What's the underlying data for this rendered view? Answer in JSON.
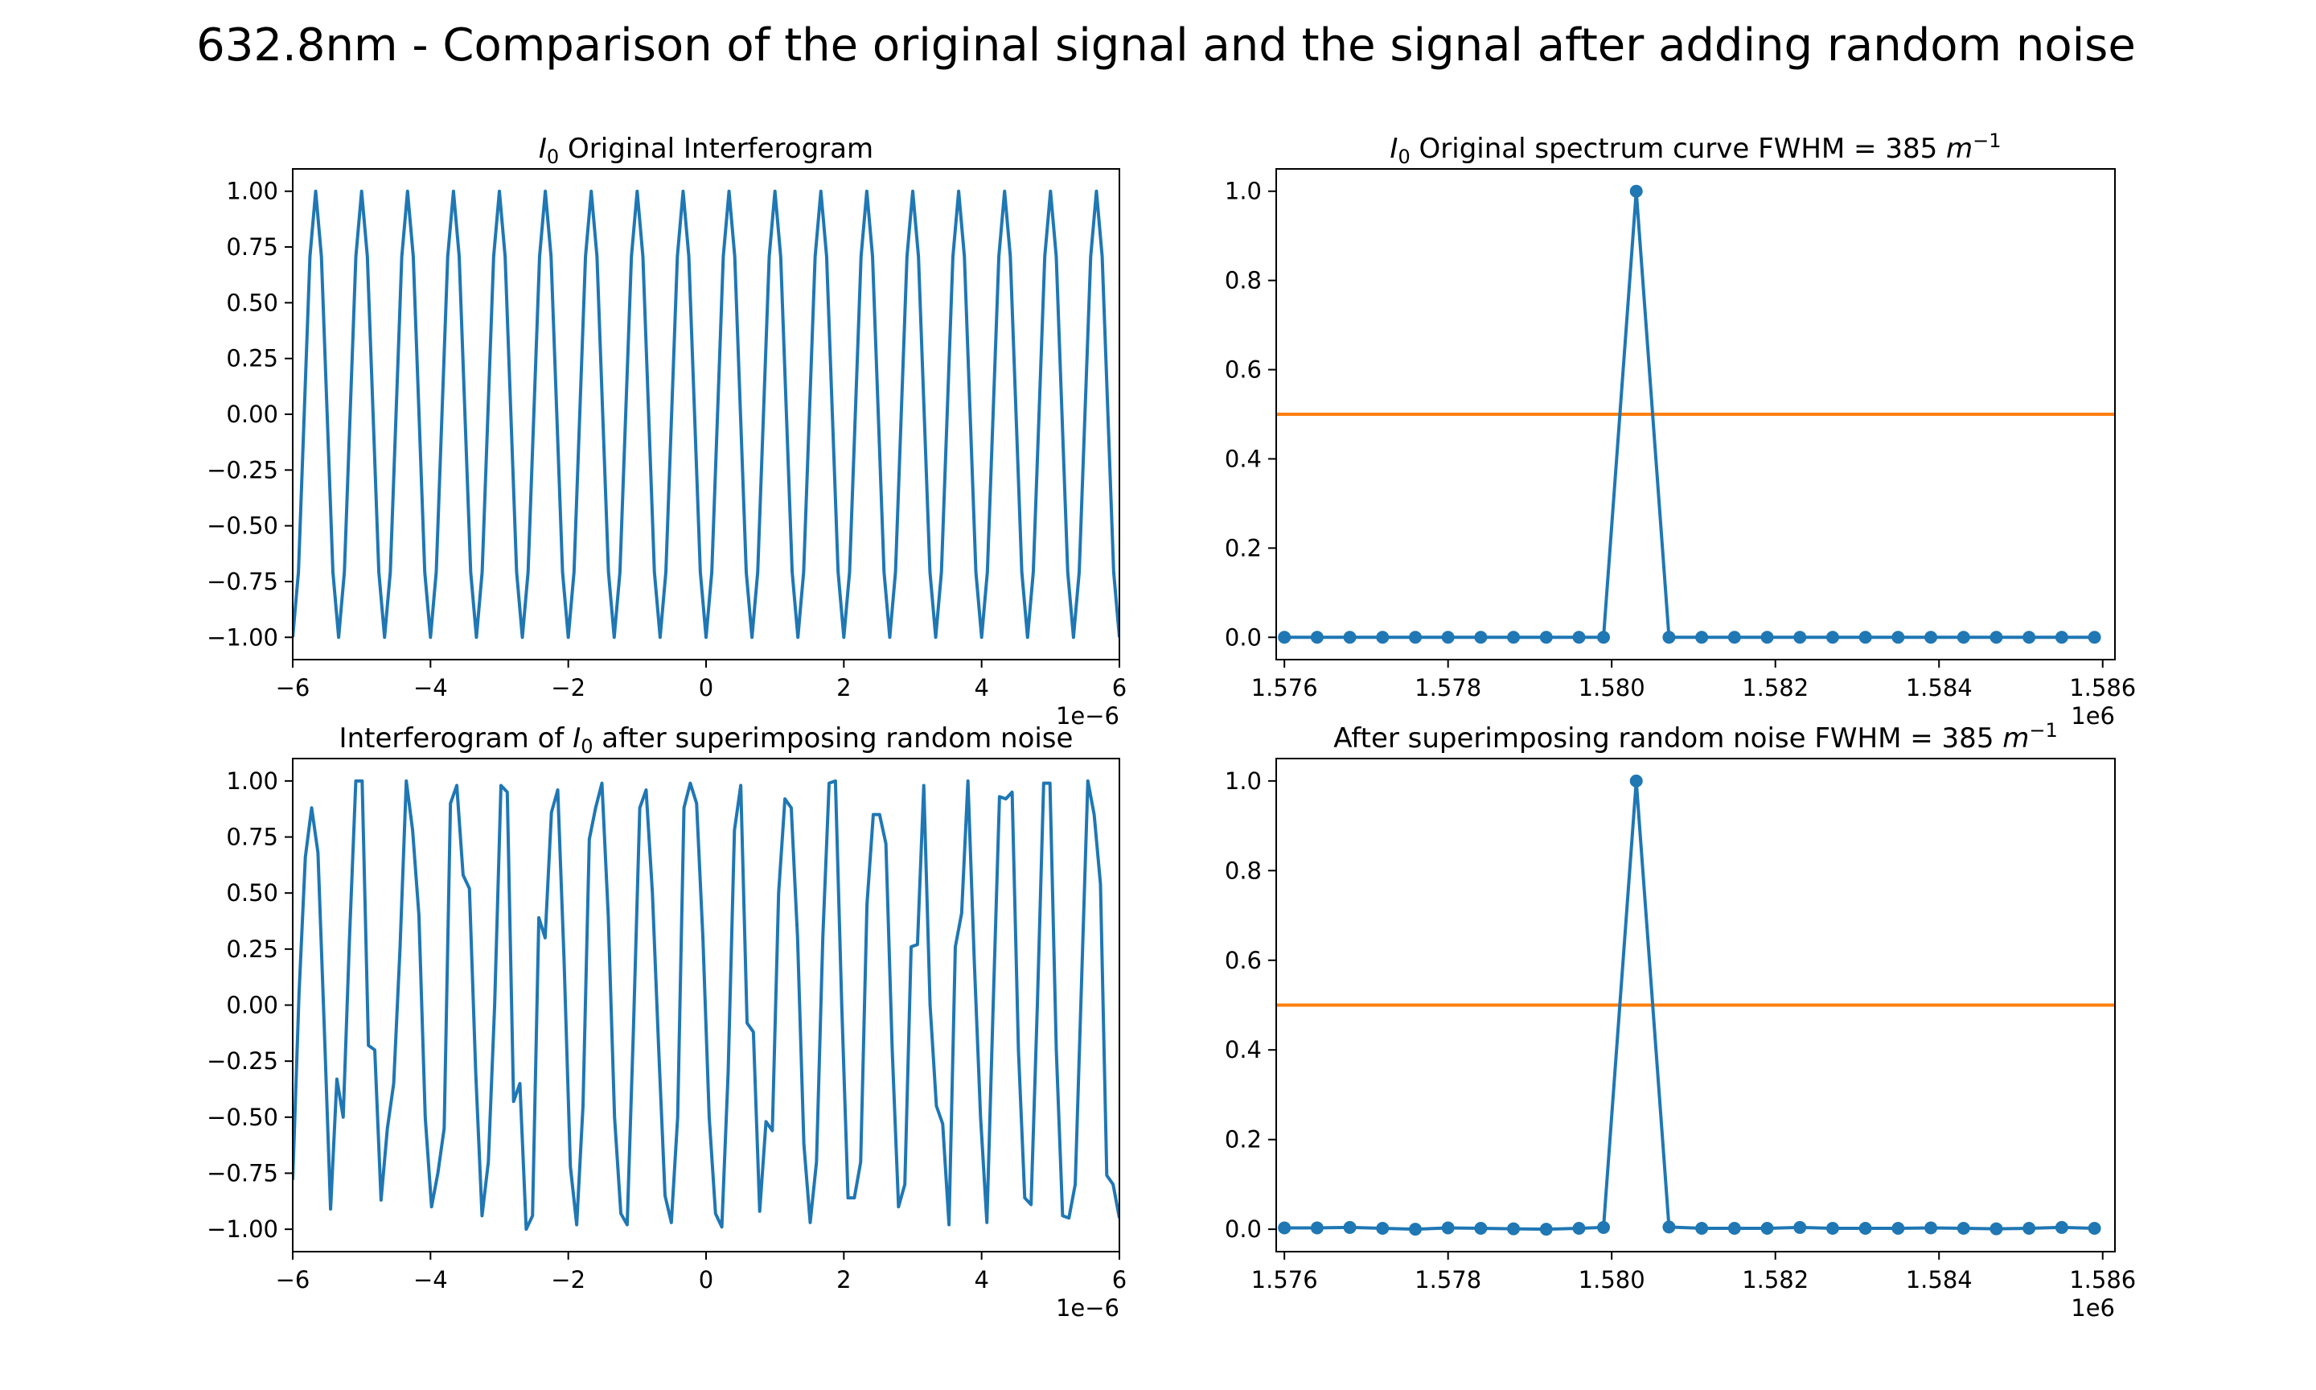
{
  "figure": {
    "suptitle": "632.8nm - Comparison of the original signal and the signal after adding random noise"
  },
  "colors": {
    "series": "#1f77b4",
    "half_max_line": "#ff7f0e",
    "axes": "#000000",
    "background": "#ffffff"
  },
  "chart_data": [
    {
      "id": "interferogram-original",
      "type": "line",
      "title_prefix": "I",
      "title_sub": "0",
      "title_rest": " Original Interferogram",
      "xlabel": "",
      "ylabel": "",
      "x_offset_label": "1e−6",
      "xlim": [
        -6,
        6
      ],
      "ylim": [
        -1.1,
        1.1
      ],
      "xticks": [
        -6,
        -4,
        -2,
        0,
        2,
        4,
        6
      ],
      "xtick_labels": [
        "−6",
        "−4",
        "−2",
        "0",
        "2",
        "4",
        "6"
      ],
      "yticks": [
        -1.0,
        -0.75,
        -0.5,
        -0.25,
        0.0,
        0.25,
        0.5,
        0.75,
        1.0
      ],
      "ytick_labels": [
        "−1.00",
        "−0.75",
        "−0.50",
        "−0.25",
        "0.00",
        "0.25",
        "0.50",
        "0.75",
        "1.00"
      ],
      "grid": false,
      "series": [
        {
          "values": [
            -1.0,
            -0.707,
            0.0,
            0.707,
            1.0,
            0.707,
            0.0,
            -0.707,
            -1.0,
            -0.707,
            0.0,
            0.707,
            1.0,
            0.707,
            0.0,
            -0.707,
            -1.0,
            -0.707,
            0.0,
            0.707,
            1.0,
            0.707,
            0.0,
            -0.707,
            -1.0,
            -0.707,
            0.0,
            0.707,
            1.0,
            0.707,
            0.0,
            -0.707,
            -1.0,
            -0.707,
            0.0,
            0.707,
            1.0,
            0.707,
            0.0,
            -0.707,
            -1.0,
            -0.707,
            0.0,
            0.707,
            1.0,
            0.707,
            0.0,
            -0.707,
            -1.0,
            -0.707,
            0.0,
            0.707,
            1.0,
            0.707,
            0.0,
            -0.707,
            -1.0,
            -0.707,
            0.0,
            0.707,
            1.0,
            0.707,
            0.0,
            -0.707,
            -1.0,
            -0.707,
            0.0,
            0.707,
            1.0,
            0.707,
            0.0,
            -0.707,
            -1.0,
            -0.707,
            0.0,
            0.707,
            1.0,
            0.707,
            0.0,
            -0.707,
            -1.0,
            -0.707,
            0.0,
            0.707,
            1.0,
            0.707,
            0.0,
            -0.707,
            -1.0,
            -0.707,
            0.0,
            0.707,
            1.0,
            0.707,
            0.0,
            -0.707,
            -1.0,
            -0.707,
            0.0,
            0.707,
            1.0,
            0.707,
            0.0,
            -0.707,
            -1.0,
            -0.707,
            0.0,
            0.707,
            1.0,
            0.707,
            0.0,
            -0.707,
            -1.0,
            -0.707,
            0.0,
            0.707,
            1.0,
            0.707,
            0.0,
            -0.707,
            -1.0,
            -0.707,
            0.0,
            0.707,
            1.0,
            0.707,
            0.0,
            -0.707,
            -1.0,
            -0.707,
            0.0,
            0.707,
            1.0,
            0.707,
            0.0,
            -0.707,
            -1.0,
            -0.707,
            0.0,
            0.707,
            1.0,
            0.707,
            0.0,
            -0.707,
            -1.0
          ]
        }
      ]
    },
    {
      "id": "spectrum-original",
      "type": "line",
      "title_prefix": "I",
      "title_sub": "0",
      "title_rest": " Original spectrum curve FWHM = 385 ",
      "title_unit": "m",
      "title_unit_sup": "−1",
      "xlabel": "",
      "ylabel": "",
      "x_offset_label": "1e6",
      "xlim": [
        1.5759,
        1.58615
      ],
      "ylim": [
        -0.05,
        1.05
      ],
      "xticks": [
        1.576,
        1.578,
        1.58,
        1.582,
        1.584,
        1.586
      ],
      "xtick_labels": [
        "1.576",
        "1.578",
        "1.580",
        "1.582",
        "1.584",
        "1.586"
      ],
      "yticks": [
        0.0,
        0.2,
        0.4,
        0.6,
        0.8,
        1.0
      ],
      "ytick_labels": [
        "0.0",
        "0.2",
        "0.4",
        "0.6",
        "0.8",
        "1.0"
      ],
      "grid": false,
      "hline": 0.5,
      "x": [
        1.576,
        1.5764,
        1.5768,
        1.5772,
        1.5776,
        1.578,
        1.5784,
        1.5788,
        1.5792,
        1.5796,
        1.5799,
        1.5803,
        1.5807,
        1.5811,
        1.5815,
        1.5819,
        1.5823,
        1.5827,
        1.5831,
        1.5835,
        1.5839,
        1.5843,
        1.5847,
        1.5851,
        1.5855,
        1.5859
      ],
      "series": [
        {
          "markers": true,
          "values": [
            0,
            0,
            0,
            0,
            0,
            0,
            0,
            0,
            0,
            0,
            0,
            1.0,
            0,
            0,
            0,
            0,
            0,
            0,
            0,
            0,
            0,
            0,
            0,
            0,
            0,
            0
          ]
        }
      ]
    },
    {
      "id": "interferogram-noisy",
      "type": "line",
      "title_prefix": "Interferogram of ",
      "title_italic": "I",
      "title_sub": "0",
      "title_rest": " after superimposing random noise",
      "xlabel": "",
      "ylabel": "",
      "x_offset_label": "1e−6",
      "xlim": [
        -6,
        6
      ],
      "ylim": [
        -1.1,
        1.1
      ],
      "xticks": [
        -6,
        -4,
        -2,
        0,
        2,
        4,
        6
      ],
      "xtick_labels": [
        "−6",
        "−4",
        "−2",
        "0",
        "2",
        "4",
        "6"
      ],
      "yticks": [
        -1.0,
        -0.75,
        -0.5,
        -0.25,
        0.0,
        0.25,
        0.5,
        0.75,
        1.0
      ],
      "ytick_labels": [
        "−1.00",
        "−0.75",
        "−0.50",
        "−0.25",
        "0.00",
        "0.25",
        "0.50",
        "0.75",
        "1.00"
      ],
      "grid": false,
      "series": [
        {
          "values": [
            -0.78,
            0.05,
            0.66,
            0.88,
            0.68,
            -0.1,
            -0.91,
            -0.33,
            -0.5,
            0.3,
            1.0,
            1.0,
            -0.18,
            -0.2,
            -0.87,
            -0.55,
            -0.35,
            0.25,
            1.0,
            0.78,
            0.4,
            -0.5,
            -0.9,
            -0.75,
            -0.55,
            0.9,
            0.98,
            0.58,
            0.52,
            -0.3,
            -0.94,
            -0.7,
            0.0,
            0.98,
            0.95,
            -0.43,
            -0.35,
            -1.0,
            -0.94,
            0.39,
            0.3,
            0.86,
            0.96,
            0.2,
            -0.72,
            -0.98,
            -0.45,
            0.74,
            0.88,
            0.99,
            0.4,
            -0.5,
            -0.93,
            -0.98,
            -0.1,
            0.88,
            0.96,
            0.5,
            -0.2,
            -0.85,
            -0.97,
            -0.5,
            0.88,
            0.99,
            0.9,
            0.3,
            -0.5,
            -0.93,
            -0.99,
            -0.3,
            0.78,
            0.98,
            -0.08,
            -0.12,
            -0.92,
            -0.52,
            -0.56,
            0.5,
            0.92,
            0.88,
            0.3,
            -0.62,
            -0.97,
            -0.7,
            0.3,
            0.99,
            1.0,
            0.0,
            -0.86,
            -0.86,
            -0.7,
            0.45,
            0.85,
            0.85,
            0.72,
            -0.2,
            -0.9,
            -0.8,
            0.26,
            0.27,
            0.98,
            0.0,
            -0.45,
            -0.53,
            -0.98,
            0.26,
            0.41,
            1.0,
            0.2,
            -0.5,
            -0.97,
            0.0,
            0.93,
            0.92,
            0.95,
            -0.2,
            -0.86,
            -0.89,
            0.0,
            0.99,
            0.99,
            -0.2,
            -0.94,
            -0.95,
            -0.8,
            0.1,
            1.0,
            0.85,
            0.54,
            -0.76,
            -0.8,
            -0.95
          ]
        }
      ]
    },
    {
      "id": "spectrum-noisy",
      "type": "line",
      "title_prefix": "After superimposing random noise FWHM = 385 ",
      "title_unit": "m",
      "title_unit_sup": "−1",
      "xlabel": "",
      "ylabel": "",
      "x_offset_label": "1e6",
      "xlim": [
        1.5759,
        1.58615
      ],
      "ylim": [
        -0.05,
        1.05
      ],
      "xticks": [
        1.576,
        1.578,
        1.58,
        1.582,
        1.584,
        1.586
      ],
      "xtick_labels": [
        "1.576",
        "1.578",
        "1.580",
        "1.582",
        "1.584",
        "1.586"
      ],
      "yticks": [
        0.0,
        0.2,
        0.4,
        0.6,
        0.8,
        1.0
      ],
      "ytick_labels": [
        "0.0",
        "0.2",
        "0.4",
        "0.6",
        "0.8",
        "1.0"
      ],
      "grid": false,
      "hline": 0.5,
      "x": [
        1.576,
        1.5764,
        1.5768,
        1.5772,
        1.5776,
        1.578,
        1.5784,
        1.5788,
        1.5792,
        1.5796,
        1.5799,
        1.5803,
        1.5807,
        1.5811,
        1.5815,
        1.5819,
        1.5823,
        1.5827,
        1.5831,
        1.5835,
        1.5839,
        1.5843,
        1.5847,
        1.5851,
        1.5855,
        1.5859
      ],
      "series": [
        {
          "markers": true,
          "values": [
            0.003,
            0.003,
            0.004,
            0.002,
            0.0,
            0.003,
            0.002,
            0.001,
            0.0,
            0.002,
            0.004,
            1.0,
            0.005,
            0.002,
            0.002,
            0.002,
            0.004,
            0.002,
            0.002,
            0.002,
            0.003,
            0.002,
            0.001,
            0.002,
            0.004,
            0.002
          ]
        }
      ]
    }
  ]
}
